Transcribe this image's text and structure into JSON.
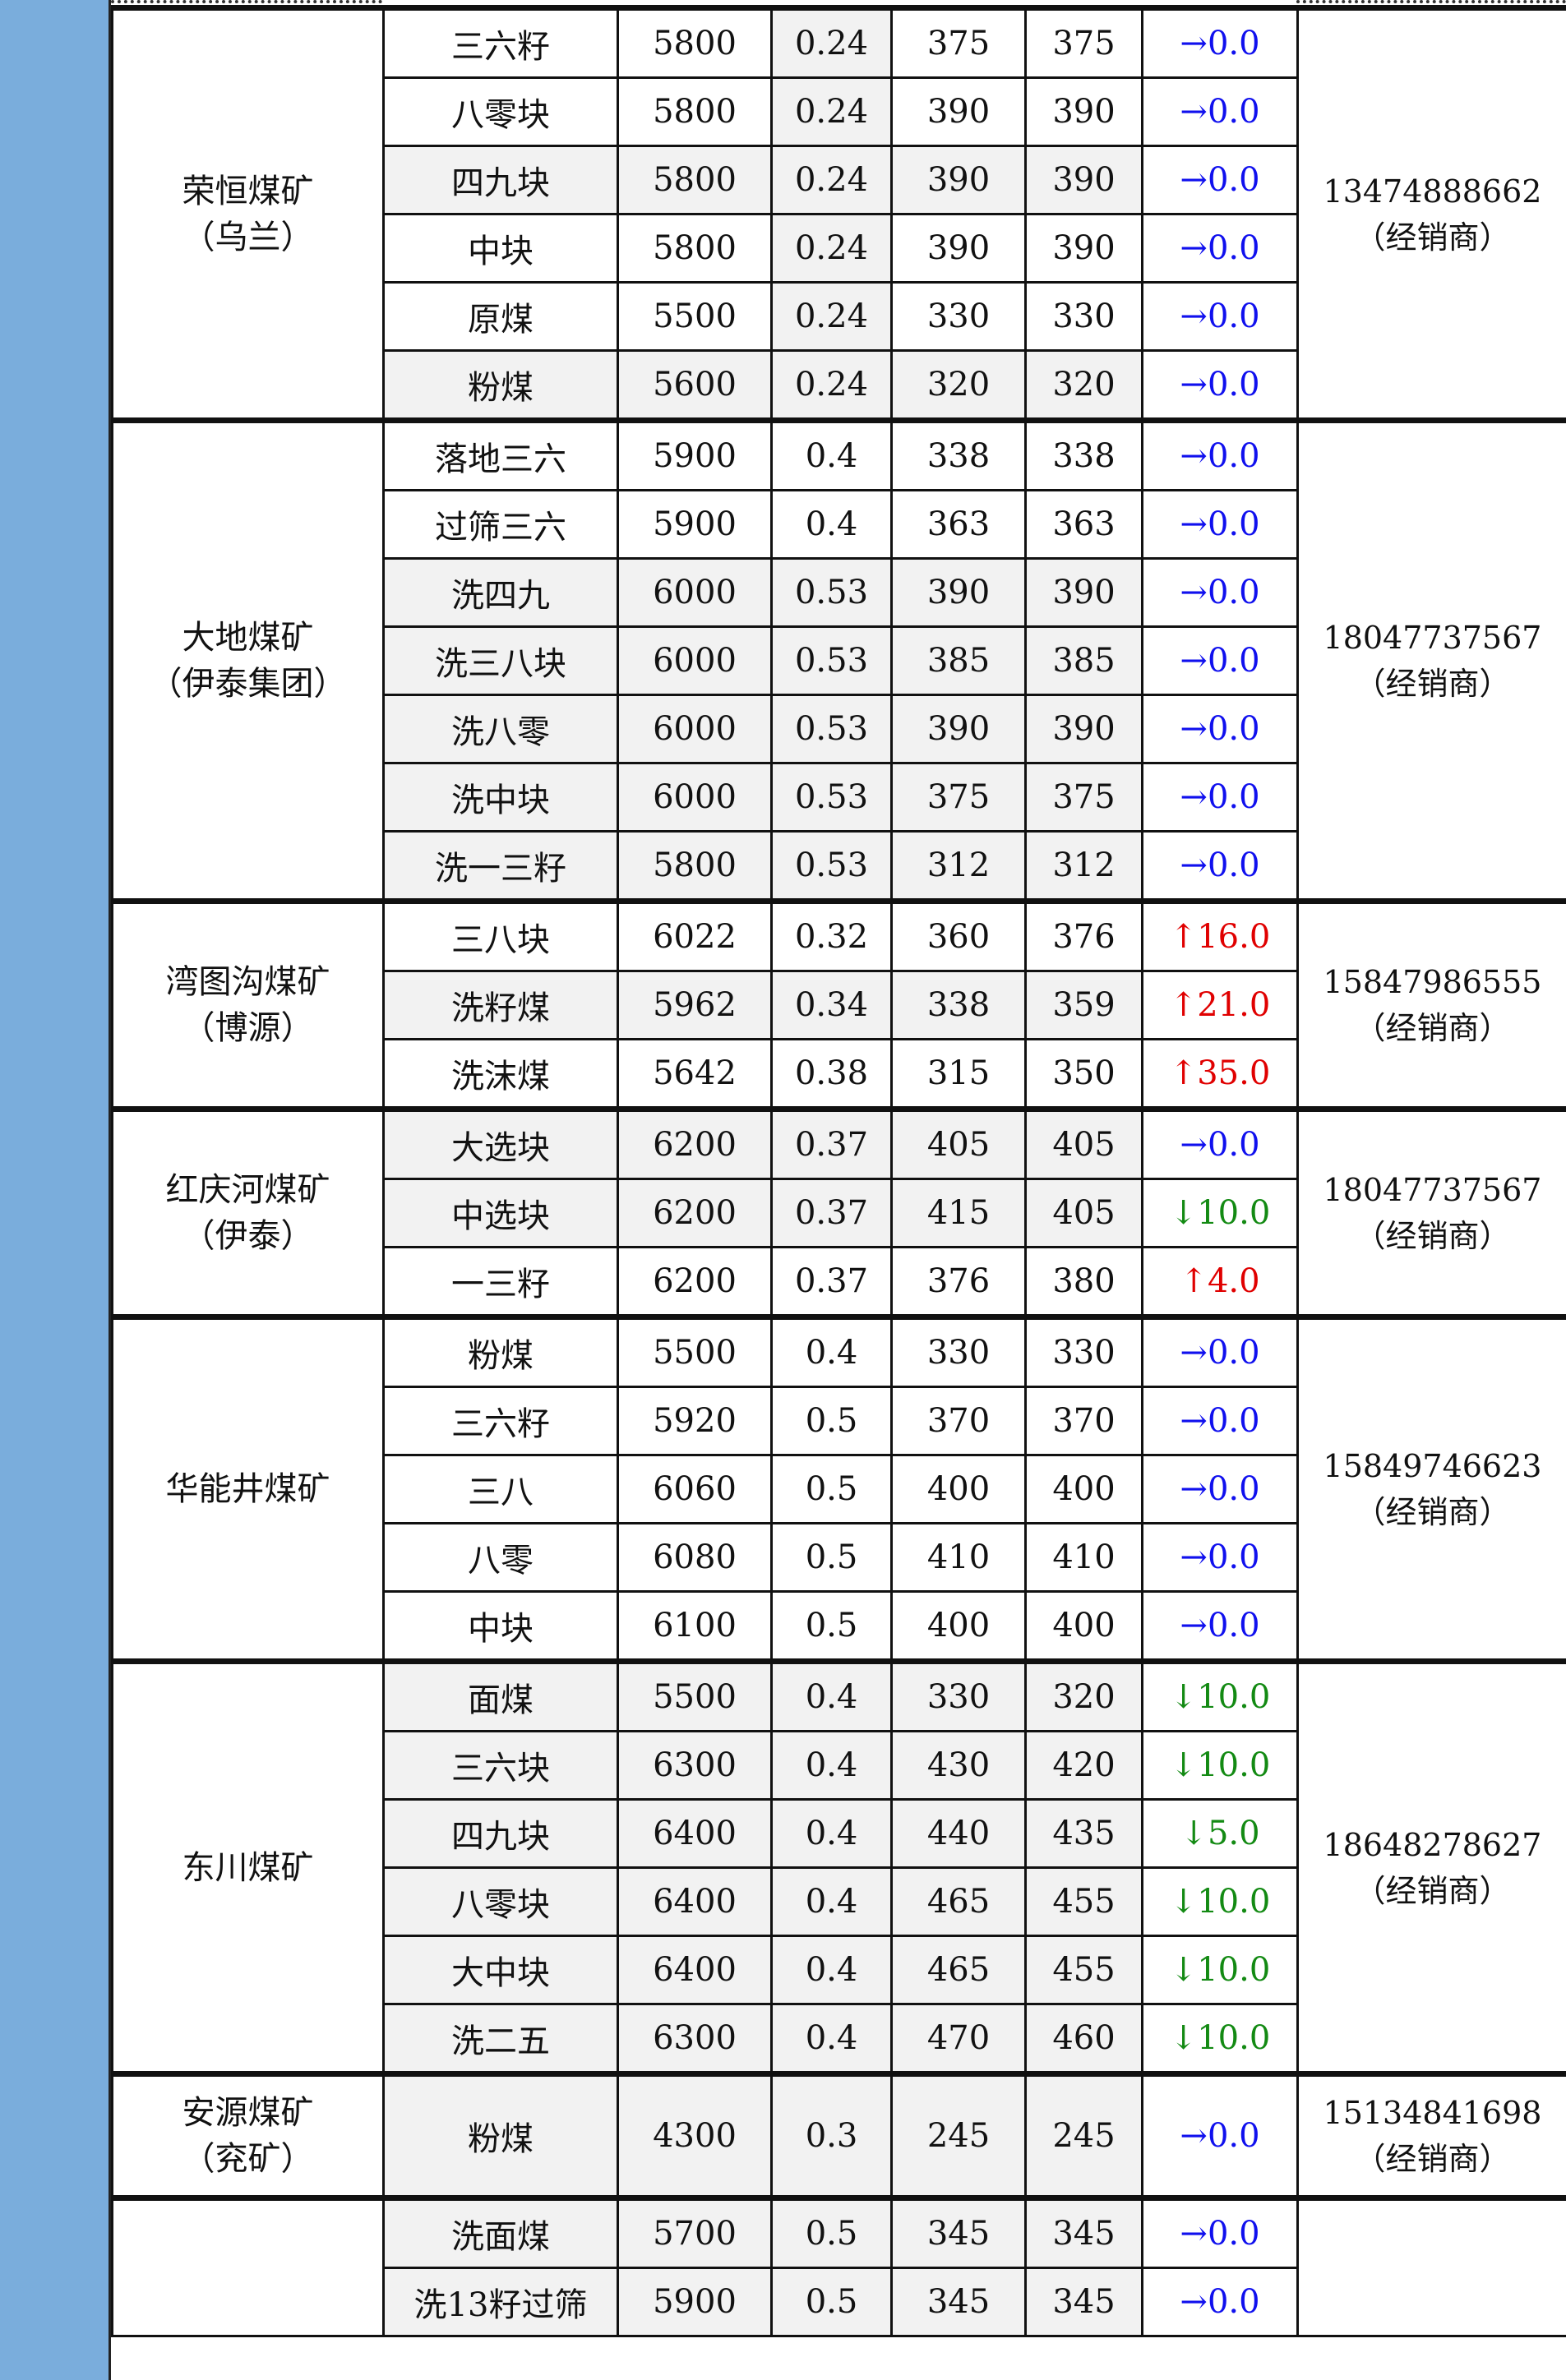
{
  "groups": [
    {
      "mine": "荣恒煤矿",
      "sub": "（乌兰）",
      "phone": "13474888662",
      "role": "（经销商）",
      "rows": [
        {
          "product": "三六籽",
          "cal": "5800",
          "sulfur": "0.24",
          "prev": "375",
          "cur": "375",
          "dir": "flat",
          "change": "0.0"
        },
        {
          "product": "八零块",
          "cal": "5800",
          "sulfur": "0.24",
          "prev": "390",
          "cur": "390",
          "dir": "flat",
          "change": "0.0"
        },
        {
          "product": "四九块",
          "cal": "5800",
          "sulfur": "0.24",
          "prev": "390",
          "cur": "390",
          "dir": "flat",
          "change": "0.0"
        },
        {
          "product": "中块",
          "cal": "5800",
          "sulfur": "0.24",
          "prev": "390",
          "cur": "390",
          "dir": "flat",
          "change": "0.0"
        },
        {
          "product": "原煤",
          "cal": "5500",
          "sulfur": "0.24",
          "prev": "330",
          "cur": "330",
          "dir": "flat",
          "change": "0.0"
        },
        {
          "product": "粉煤",
          "cal": "5600",
          "sulfur": "0.24",
          "prev": "320",
          "cur": "320",
          "dir": "flat",
          "change": "0.0"
        }
      ]
    },
    {
      "mine": "大地煤矿",
      "sub": "（伊泰集团）",
      "phone": "18047737567",
      "role": "（经销商）",
      "rows": [
        {
          "product": "落地三六",
          "cal": "5900",
          "sulfur": "0.4",
          "prev": "338",
          "cur": "338",
          "dir": "flat",
          "change": "0.0"
        },
        {
          "product": "过筛三六",
          "cal": "5900",
          "sulfur": "0.4",
          "prev": "363",
          "cur": "363",
          "dir": "flat",
          "change": "0.0"
        },
        {
          "product": "洗四九",
          "cal": "6000",
          "sulfur": "0.53",
          "prev": "390",
          "cur": "390",
          "dir": "flat",
          "change": "0.0"
        },
        {
          "product": "洗三八块",
          "cal": "6000",
          "sulfur": "0.53",
          "prev": "385",
          "cur": "385",
          "dir": "flat",
          "change": "0.0"
        },
        {
          "product": "洗八零",
          "cal": "6000",
          "sulfur": "0.53",
          "prev": "390",
          "cur": "390",
          "dir": "flat",
          "change": "0.0"
        },
        {
          "product": "洗中块",
          "cal": "6000",
          "sulfur": "0.53",
          "prev": "375",
          "cur": "375",
          "dir": "flat",
          "change": "0.0"
        },
        {
          "product": "洗一三籽",
          "cal": "5800",
          "sulfur": "0.53",
          "prev": "312",
          "cur": "312",
          "dir": "flat",
          "change": "0.0"
        }
      ]
    },
    {
      "mine": "湾图沟煤矿",
      "sub": "（博源）",
      "phone": "15847986555",
      "role": "（经销商）",
      "rows": [
        {
          "product": "三八块",
          "cal": "6022",
          "sulfur": "0.32",
          "prev": "360",
          "cur": "376",
          "dir": "up",
          "change": "16.0"
        },
        {
          "product": "洗籽煤",
          "cal": "5962",
          "sulfur": "0.34",
          "prev": "338",
          "cur": "359",
          "dir": "up",
          "change": "21.0"
        },
        {
          "product": "洗沫煤",
          "cal": "5642",
          "sulfur": "0.38",
          "prev": "315",
          "cur": "350",
          "dir": "up",
          "change": "35.0"
        }
      ]
    },
    {
      "mine": "红庆河煤矿",
      "sub": "（伊泰）",
      "phone": "18047737567",
      "role": "（经销商）",
      "rows": [
        {
          "product": "大选块",
          "cal": "6200",
          "sulfur": "0.37",
          "prev": "405",
          "cur": "405",
          "dir": "flat",
          "change": "0.0"
        },
        {
          "product": "中选块",
          "cal": "6200",
          "sulfur": "0.37",
          "prev": "415",
          "cur": "405",
          "dir": "down",
          "change": "10.0"
        },
        {
          "product": "一三籽",
          "cal": "6200",
          "sulfur": "0.37",
          "prev": "376",
          "cur": "380",
          "dir": "up",
          "change": "4.0"
        }
      ]
    },
    {
      "mine": "华能井煤矿",
      "sub": "",
      "phone": "15849746623",
      "role": "（经销商）",
      "rows": [
        {
          "product": "粉煤",
          "cal": "5500",
          "sulfur": "0.4",
          "prev": "330",
          "cur": "330",
          "dir": "flat",
          "change": "0.0"
        },
        {
          "product": "三六籽",
          "cal": "5920",
          "sulfur": "0.5",
          "prev": "370",
          "cur": "370",
          "dir": "flat",
          "change": "0.0"
        },
        {
          "product": "三八",
          "cal": "6060",
          "sulfur": "0.5",
          "prev": "400",
          "cur": "400",
          "dir": "flat",
          "change": "0.0"
        },
        {
          "product": "八零",
          "cal": "6080",
          "sulfur": "0.5",
          "prev": "410",
          "cur": "410",
          "dir": "flat",
          "change": "0.0"
        },
        {
          "product": "中块",
          "cal": "6100",
          "sulfur": "0.5",
          "prev": "400",
          "cur": "400",
          "dir": "flat",
          "change": "0.0"
        }
      ]
    },
    {
      "mine": "东川煤矿",
      "sub": "",
      "phone": "18648278627",
      "role": "（经销商）",
      "rows": [
        {
          "product": "面煤",
          "cal": "5500",
          "sulfur": "0.4",
          "prev": "330",
          "cur": "320",
          "dir": "down",
          "change": "10.0"
        },
        {
          "product": "三六块",
          "cal": "6300",
          "sulfur": "0.4",
          "prev": "430",
          "cur": "420",
          "dir": "down",
          "change": "10.0"
        },
        {
          "product": "四九块",
          "cal": "6400",
          "sulfur": "0.4",
          "prev": "440",
          "cur": "435",
          "dir": "down",
          "change": "5.0"
        },
        {
          "product": "八零块",
          "cal": "6400",
          "sulfur": "0.4",
          "prev": "465",
          "cur": "455",
          "dir": "down",
          "change": "10.0"
        },
        {
          "product": "大中块",
          "cal": "6400",
          "sulfur": "0.4",
          "prev": "465",
          "cur": "455",
          "dir": "down",
          "change": "10.0"
        },
        {
          "product": "洗二五",
          "cal": "6300",
          "sulfur": "0.4",
          "prev": "470",
          "cur": "460",
          "dir": "down",
          "change": "10.0"
        }
      ]
    },
    {
      "mine": "安源煤矿",
      "sub": "（兖矿）",
      "phone": "15134841698",
      "role": "（经销商）",
      "rows": [
        {
          "product": "粉煤",
          "cal": "4300",
          "sulfur": "0.3",
          "prev": "245",
          "cur": "245",
          "dir": "flat",
          "change": "0.0"
        }
      ]
    },
    {
      "mine": "",
      "sub": "",
      "phone": "",
      "role": "",
      "rows": [
        {
          "product": "洗面煤",
          "cal": "5700",
          "sulfur": "0.5",
          "prev": "345",
          "cur": "345",
          "dir": "flat",
          "change": "0.0"
        },
        {
          "product": "洗13籽过筛",
          "cal": "5900",
          "sulfur": "0.5",
          "prev": "345",
          "cur": "345",
          "dir": "flat",
          "change": "0.0"
        }
      ]
    }
  ],
  "arrows": {
    "up": "↑",
    "down": "↓",
    "flat": "→"
  },
  "colors": {
    "up": "#e00000",
    "down": "#138a13",
    "flat": "#1010ee",
    "sidebar": "#7aaddc",
    "shade": "#f2f2f2"
  }
}
